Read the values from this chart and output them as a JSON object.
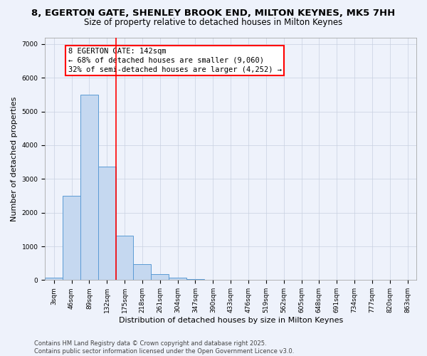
{
  "title_line1": "8, EGERTON GATE, SHENLEY BROOK END, MILTON KEYNES, MK5 7HH",
  "title_line2": "Size of property relative to detached houses in Milton Keynes",
  "xlabel": "Distribution of detached houses by size in Milton Keynes",
  "ylabel": "Number of detached properties",
  "categories": [
    "3sqm",
    "46sqm",
    "89sqm",
    "132sqm",
    "175sqm",
    "218sqm",
    "261sqm",
    "304sqm",
    "347sqm",
    "390sqm",
    "433sqm",
    "476sqm",
    "519sqm",
    "562sqm",
    "605sqm",
    "648sqm",
    "691sqm",
    "734sqm",
    "777sqm",
    "820sqm",
    "863sqm"
  ],
  "values": [
    80,
    2500,
    5500,
    3370,
    1310,
    470,
    185,
    80,
    30,
    0,
    0,
    0,
    0,
    0,
    0,
    0,
    0,
    0,
    0,
    0,
    0
  ],
  "bar_color": "#c5d8f0",
  "bar_edge_color": "#5b9bd5",
  "vline_color": "red",
  "vline_x_idx": 3,
  "annotation_text": "8 EGERTON GATE: 142sqm\n← 68% of detached houses are smaller (9,060)\n32% of semi-detached houses are larger (4,252) →",
  "annotation_box_color": "white",
  "annotation_box_edge_color": "red",
  "ylim": [
    0,
    7200
  ],
  "yticks": [
    0,
    1000,
    2000,
    3000,
    4000,
    5000,
    6000,
    7000
  ],
  "bg_color": "#eef2fb",
  "plot_bg_color": "#eef2fb",
  "grid_color": "#c8d0e0",
  "footnote": "Contains HM Land Registry data © Crown copyright and database right 2025.\nContains public sector information licensed under the Open Government Licence v3.0.",
  "title_fontsize": 9.5,
  "subtitle_fontsize": 8.5,
  "xlabel_fontsize": 8,
  "ylabel_fontsize": 8,
  "tick_fontsize": 6.5,
  "annotation_fontsize": 7.5,
  "footnote_fontsize": 6
}
